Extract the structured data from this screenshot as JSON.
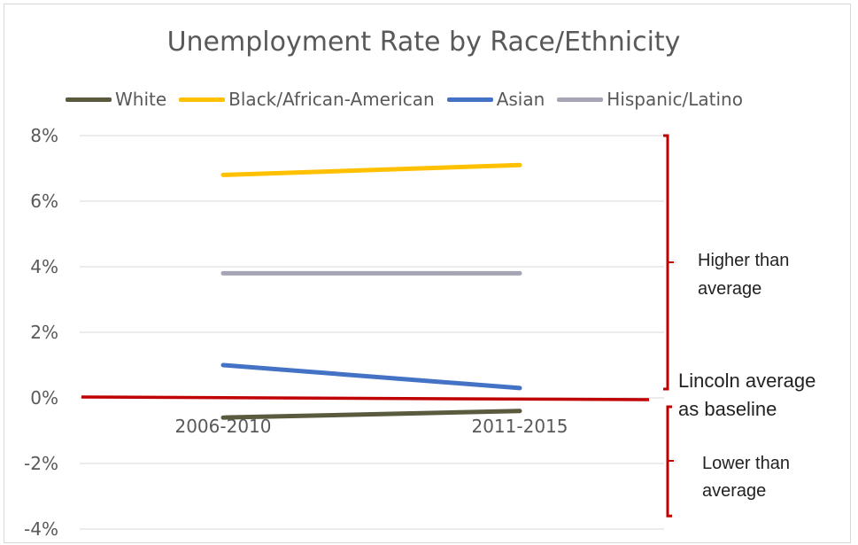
{
  "chart_data": {
    "type": "line",
    "title": "Unemployment Rate by Race/Ethnicity",
    "xlabel": "",
    "ylabel": "",
    "categories": [
      "2006-2010",
      "2011-2015"
    ],
    "y_ticks": [
      "8%",
      "6%",
      "4%",
      "2%",
      "0%",
      "-2%",
      "-4%"
    ],
    "ylim": [
      -4,
      8
    ],
    "grid": true,
    "legend_position": "top",
    "series": [
      {
        "name": "White",
        "values": [
          -0.6,
          -0.4
        ],
        "color": "#5a5a3e"
      },
      {
        "name": "Black/African-American",
        "values": [
          6.8,
          7.1
        ],
        "color": "#ffc000"
      },
      {
        "name": "Asian",
        "values": [
          1.0,
          0.3
        ],
        "color": "#4472c4"
      },
      {
        "name": "Hispanic/Latino",
        "values": [
          3.8,
          3.8
        ],
        "color": "#a5a5b4"
      }
    ],
    "baseline": {
      "value": 0,
      "color": "#c00000"
    },
    "annotations": {
      "higher": [
        "Higher than",
        "average"
      ],
      "baseline": [
        "Lincoln average",
        "as baseline"
      ],
      "lower": [
        "Lower than",
        "average"
      ],
      "bracket_color": "#c00000"
    }
  }
}
